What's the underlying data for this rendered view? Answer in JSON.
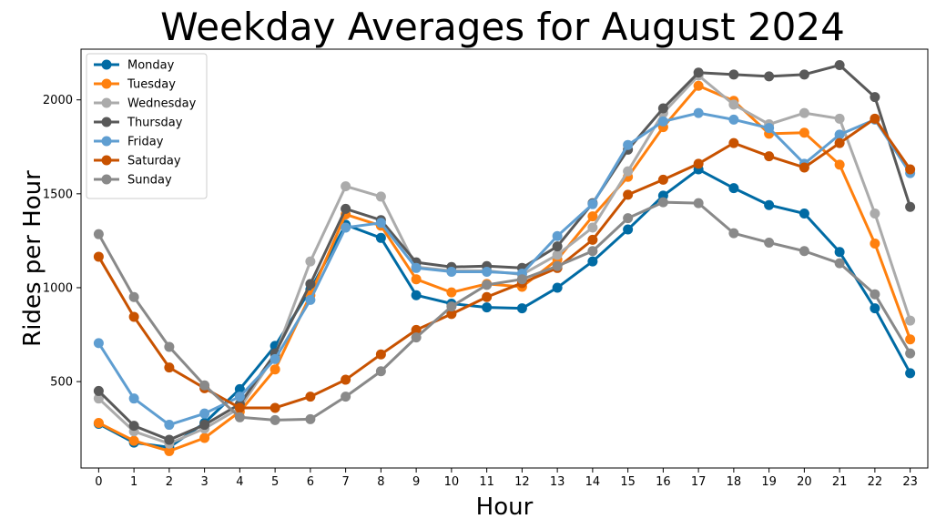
{
  "chart_data": {
    "type": "line",
    "title": "Weekday Averages for August 2024",
    "xlabel": "Hour",
    "ylabel": "Rides per Hour",
    "x": [
      0,
      1,
      2,
      3,
      4,
      5,
      6,
      7,
      8,
      9,
      10,
      11,
      12,
      13,
      14,
      15,
      16,
      17,
      18,
      19,
      20,
      21,
      22,
      23
    ],
    "x_tick_labels": [
      "0",
      "1",
      "2",
      "3",
      "4",
      "5",
      "6",
      "7",
      "8",
      "9",
      "10",
      "11",
      "12",
      "13",
      "14",
      "15",
      "16",
      "17",
      "18",
      "19",
      "20",
      "21",
      "22",
      "23"
    ],
    "y_ticks": [
      500,
      1000,
      1500,
      2000
    ],
    "y_tick_labels": [
      "500",
      "1000",
      "1500",
      "2000"
    ],
    "xlim": [
      -0.5,
      23.5
    ],
    "ylim": [
      40,
      2270
    ],
    "legend_position": "top-left",
    "grid": false,
    "series": [
      {
        "name": "Monday",
        "color": "#006ba4",
        "values": [
          275,
          175,
          150,
          280,
          460,
          690,
          990,
          1335,
          1265,
          960,
          915,
          895,
          890,
          1000,
          1140,
          1310,
          1490,
          1630,
          1530,
          1440,
          1395,
          1190,
          890,
          545
        ]
      },
      {
        "name": "Tuesday",
        "color": "#ff800e",
        "values": [
          280,
          185,
          130,
          200,
          340,
          565,
          960,
          1390,
          1330,
          1045,
          975,
          1020,
          1005,
          1150,
          1380,
          1590,
          1855,
          2075,
          1995,
          1820,
          1825,
          1655,
          1235,
          725
        ]
      },
      {
        "name": "Wednesday",
        "color": "#ababab",
        "values": [
          410,
          235,
          170,
          250,
          360,
          640,
          1140,
          1540,
          1485,
          1110,
          1090,
          1090,
          1070,
          1175,
          1320,
          1620,
          1930,
          2130,
          1975,
          1870,
          1930,
          1900,
          1395,
          825
        ]
      },
      {
        "name": "Thursday",
        "color": "#595959",
        "values": [
          450,
          265,
          190,
          270,
          380,
          650,
          1020,
          1420,
          1360,
          1135,
          1110,
          1115,
          1105,
          1220,
          1450,
          1735,
          1955,
          2145,
          2135,
          2125,
          2135,
          2185,
          2015,
          1430
        ]
      },
      {
        "name": "Friday",
        "color": "#5f9ed1",
        "values": [
          705,
          410,
          270,
          330,
          420,
          620,
          935,
          1320,
          1345,
          1105,
          1085,
          1085,
          1075,
          1275,
          1445,
          1760,
          1885,
          1930,
          1895,
          1850,
          1660,
          1815,
          1895,
          1610
        ]
      },
      {
        "name": "Saturday",
        "color": "#c85200",
        "values": [
          1165,
          845,
          575,
          465,
          360,
          360,
          420,
          510,
          645,
          775,
          860,
          950,
          1025,
          1105,
          1255,
          1495,
          1575,
          1660,
          1770,
          1700,
          1640,
          1770,
          1900,
          1630
        ]
      },
      {
        "name": "Sunday",
        "color": "#898989",
        "values": [
          1285,
          950,
          685,
          480,
          310,
          295,
          300,
          420,
          555,
          735,
          900,
          1015,
          1045,
          1115,
          1195,
          1370,
          1455,
          1450,
          1290,
          1240,
          1195,
          1130,
          965,
          650
        ]
      }
    ]
  }
}
